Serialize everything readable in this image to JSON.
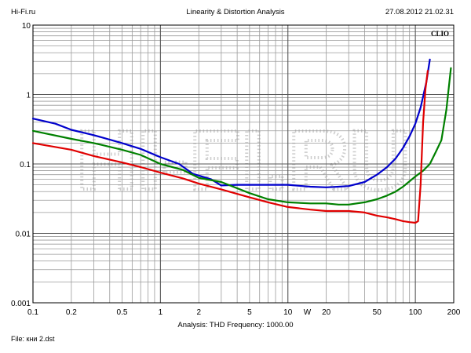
{
  "header": {
    "left": "Hi-Fi.ru",
    "center": "Linearity & Distortion Analysis",
    "right": "27.08.2012 21.02.31"
  },
  "brand_label": "CLIO",
  "watermark_text": "HI-FI.RU",
  "footer": {
    "analysis": "Analysis: THD   Frequency: 1000.00",
    "file": "File: кни 2.dst"
  },
  "chart_data": {
    "type": "line",
    "title": "Linearity & Distortion Analysis",
    "x_scale": "log",
    "y_scale": "log",
    "xlim": [
      0.1,
      200
    ],
    "ylim": [
      0.001,
      10
    ],
    "x_unit_label": "W",
    "x_ticks": [
      {
        "value": 0.1,
        "label": "0.1"
      },
      {
        "value": 0.2,
        "label": "0.2"
      },
      {
        "value": 0.5,
        "label": "0.5"
      },
      {
        "value": 1,
        "label": "1"
      },
      {
        "value": 2,
        "label": "2"
      },
      {
        "value": 5,
        "label": "5"
      },
      {
        "value": 10,
        "label": "10"
      },
      {
        "value": 20,
        "label": "20"
      },
      {
        "value": 50,
        "label": "50"
      },
      {
        "value": 100,
        "label": "100"
      },
      {
        "value": 200,
        "label": "200"
      }
    ],
    "y_ticks": [
      {
        "value": 10,
        "label": "10"
      },
      {
        "value": 1,
        "label": "1"
      },
      {
        "value": 0.1,
        "label": "0.1"
      },
      {
        "value": 0.01,
        "label": "0.01"
      },
      {
        "value": 0.001,
        "label": "0.001"
      }
    ],
    "grid": true,
    "series": [
      {
        "color": "#0000cc",
        "x": [
          0.1,
          0.15,
          0.2,
          0.3,
          0.5,
          0.7,
          1.0,
          1.4,
          1.8,
          2.5,
          3.0,
          4.0,
          6.0,
          10,
          15,
          20,
          25,
          30,
          40,
          50,
          60,
          70,
          80,
          90,
          100,
          110,
          122,
          130
        ],
        "y": [
          0.45,
          0.38,
          0.31,
          0.26,
          0.2,
          0.165,
          0.125,
          0.1,
          0.072,
          0.06,
          0.049,
          0.05,
          0.05,
          0.05,
          0.047,
          0.046,
          0.047,
          0.048,
          0.055,
          0.07,
          0.09,
          0.12,
          0.17,
          0.25,
          0.38,
          0.65,
          1.5,
          3.2
        ]
      },
      {
        "color": "#008000",
        "x": [
          0.1,
          0.2,
          0.3,
          0.5,
          0.7,
          1.0,
          1.5,
          2.0,
          3.0,
          5.0,
          7.0,
          10,
          15,
          20,
          25,
          30,
          40,
          50,
          60,
          70,
          80,
          100,
          115,
          130,
          145,
          160,
          175,
          190
        ],
        "y": [
          0.3,
          0.23,
          0.2,
          0.16,
          0.135,
          0.1,
          0.082,
          0.063,
          0.055,
          0.038,
          0.031,
          0.028,
          0.027,
          0.027,
          0.026,
          0.026,
          0.028,
          0.031,
          0.035,
          0.04,
          0.047,
          0.066,
          0.08,
          0.1,
          0.15,
          0.22,
          0.6,
          2.4
        ]
      },
      {
        "color": "#e00000",
        "x": [
          0.1,
          0.2,
          0.3,
          0.5,
          0.7,
          1.0,
          1.5,
          2.0,
          3.0,
          5.0,
          7.0,
          10,
          15,
          20,
          25,
          30,
          40,
          50,
          60,
          70,
          80,
          90,
          100,
          105,
          110,
          115,
          120,
          125
        ],
        "y": [
          0.2,
          0.16,
          0.13,
          0.105,
          0.09,
          0.075,
          0.062,
          0.052,
          0.043,
          0.033,
          0.028,
          0.024,
          0.022,
          0.021,
          0.021,
          0.021,
          0.02,
          0.018,
          0.017,
          0.016,
          0.015,
          0.0145,
          0.0142,
          0.015,
          0.05,
          0.4,
          1.2,
          2.2
        ]
      }
    ]
  }
}
